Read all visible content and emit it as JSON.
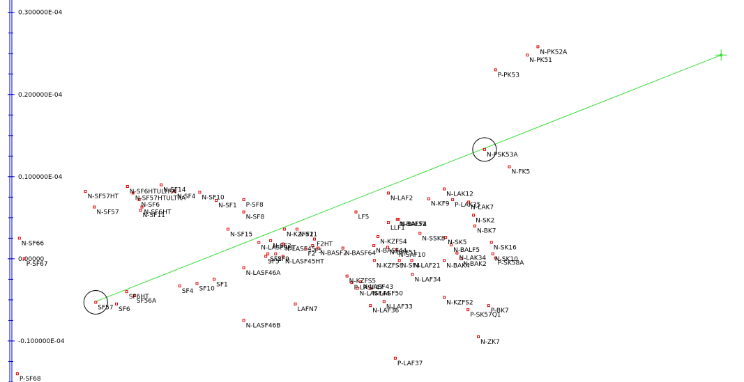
{
  "chart_data": {
    "type": "scatter",
    "colors": {
      "axis": "#0000cc",
      "points": "#e00000",
      "line": "#33dd33",
      "circles": "#000000"
    },
    "y_axis": {
      "ticks": [
        {
          "value": 3e-05,
          "label": "0.300000E-04"
        },
        {
          "value": 2e-05,
          "label": "0.200000E-04"
        },
        {
          "value": 1e-05,
          "label": "0.100000E-04"
        },
        {
          "value": 0.0,
          "label": "0.00000"
        },
        {
          "value": -1e-05,
          "label": "-0.100000E-04"
        }
      ]
    },
    "x_range": [
      0.0,
      1.0
    ],
    "y_range": [
      -1.5e-05,
      3.15e-05
    ],
    "line_endpoints": [
      {
        "x": 0.1171,
        "y": -5.2e-06
      },
      {
        "x": 0.9688,
        "y": 2.48e-05
      }
    ],
    "circled_points": [
      "SF57",
      "N-PSK53A"
    ],
    "points": [
      {
        "name": "SF57",
        "x": 0.1171,
        "y": -5.3e-06
      },
      {
        "name": "SF6",
        "x": 0.1453,
        "y": -5.5e-06
      },
      {
        "name": "SF56A",
        "x": 0.1697,
        "y": -4.5e-06
      },
      {
        "name": "SF6HT",
        "x": 0.1593,
        "y": -4e-06
      },
      {
        "name": "SF4",
        "x": 0.2315,
        "y": -3.3e-06
      },
      {
        "name": "SF10",
        "x": 0.255,
        "y": -3e-06
      },
      {
        "name": "SF1",
        "x": 0.2784,
        "y": -2.5e-06
      },
      {
        "name": "N-LASF46A",
        "x": 0.3187,
        "y": -1.1e-06
      },
      {
        "name": "N-LASF46B",
        "x": 0.3187,
        "y": -7.5e-06
      },
      {
        "name": "LAFN7",
        "x": 0.3889,
        "y": -5.5e-06
      },
      {
        "name": "N-SF57HT",
        "x": 0.1031,
        "y": 8.2e-06
      },
      {
        "name": "N-SF57HTULTRA",
        "x": 0.1678,
        "y": 8e-06
      },
      {
        "name": "N-SF57",
        "x": 0.1153,
        "y": 6.3e-06
      },
      {
        "name": "N-SF6HTULTRA",
        "x": 0.1603,
        "y": 8.8e-06
      },
      {
        "name": "N-SF6",
        "x": 0.1762,
        "y": 7.2e-06
      },
      {
        "name": "N-SF6HT",
        "x": 0.18,
        "y": 6.3e-06
      },
      {
        "name": "N-SF11",
        "x": 0.1781,
        "y": 5.9e-06
      },
      {
        "name": "N-SF14",
        "x": 0.2062,
        "y": 9e-06
      },
      {
        "name": "N-SF4",
        "x": 0.225,
        "y": 8.2e-06
      },
      {
        "name": "N-SF10",
        "x": 0.2587,
        "y": 8.1e-06
      },
      {
        "name": "N-SF1",
        "x": 0.2812,
        "y": 7.1e-06
      },
      {
        "name": "P-SF8",
        "x": 0.3187,
        "y": 7.2e-06
      },
      {
        "name": "N-SF8",
        "x": 0.3187,
        "y": 5.7e-06
      },
      {
        "name": "N-SF15",
        "x": 0.2972,
        "y": 3.6e-06
      },
      {
        "name": "N-SF66",
        "x": 0.0131,
        "y": 2.5e-06
      },
      {
        "name": "P-SF67",
        "x": 0.0197,
        "y": 0.0
      },
      {
        "name": "P-SF68",
        "x": 0.0103,
        "y": -1.4e-05
      },
      {
        "name": "N-KZFS11",
        "x": 0.374,
        "y": 3.6e-06
      },
      {
        "name": "N-F2",
        "x": 0.3912,
        "y": 3.6e-06
      },
      {
        "name": "N-SF2",
        "x": 0.3553,
        "y": 2.2e-06
      },
      {
        "name": "N-LASF45",
        "x": 0.3721,
        "y": 1.8e-06
      },
      {
        "name": "F2HT",
        "x": 0.415,
        "y": 2.4e-06
      },
      {
        "name": "F5",
        "x": 0.4125,
        "y": 1.6e-06
      },
      {
        "name": "N-LASF9HT",
        "x": 0.3393,
        "y": 2e-06
      },
      {
        "name": "SF2",
        "x": 0.3515,
        "y": 6e-07
      },
      {
        "name": "SF9",
        "x": 0.3621,
        "y": 6e-07
      },
      {
        "name": "SF5",
        "x": 0.3487,
        "y": 3e-07
      },
      {
        "name": "F2",
        "x": 0.4031,
        "y": 1.2e-06
      },
      {
        "name": "N-BASF2",
        "x": 0.42,
        "y": 1.3e-06
      },
      {
        "name": "N-LASF45HT",
        "x": 0.3721,
        "y": 3e-07
      },
      {
        "name": "N-BASF64",
        "x": 0.4537,
        "y": 1.3e-06
      },
      {
        "name": "LF5",
        "x": 0.4715,
        "y": 5.7e-06
      },
      {
        "name": "N-LAF2",
        "x": 0.5156,
        "y": 8e-06
      },
      {
        "name": "LLF1",
        "x": 0.5156,
        "y": 4.4e-06
      },
      {
        "name": "N-BAF52",
        "x": 0.5278,
        "y": 4.8e-06
      },
      {
        "name": "N-BALF4",
        "x": 0.5293,
        "y": 4.8e-06
      },
      {
        "name": "N-KZFS4",
        "x": 0.5015,
        "y": 2.7e-06
      },
      {
        "name": "N-BASF44",
        "x": 0.4959,
        "y": 1.6e-06
      },
      {
        "name": "N-SAF10",
        "x": 0.5268,
        "y": 1.1e-06
      },
      {
        "name": "N-SSK8",
        "x": 0.5587,
        "y": 3.1e-06
      },
      {
        "name": "N-BAF51",
        "x": 0.5146,
        "y": 1.4e-06
      },
      {
        "name": "N-KZFS8",
        "x": 0.4965,
        "y": -2e-07
      },
      {
        "name": "N-SF4_1",
        "x": 0.5306,
        "y": -2e-07
      },
      {
        "name": "N-LAF21",
        "x": 0.5475,
        "y": -2e-07
      },
      {
        "name": "N-LAF34",
        "x": 0.5484,
        "y": -1.9e-06
      },
      {
        "name": "N-KZFS5",
        "x": 0.4593,
        "y": -2.1e-06
      },
      {
        "name": "P-LASF47",
        "x": 0.4659,
        "y": -2.9e-06
      },
      {
        "name": "N-LASF43",
        "x": 0.4781,
        "y": -2.8e-06
      },
      {
        "name": "N-LASF44",
        "x": 0.4734,
        "y": -3.6e-06
      },
      {
        "name": "N-LASF50",
        "x": 0.4912,
        "y": -3.6e-06
      },
      {
        "name": "N-LAF36",
        "x": 0.4912,
        "y": -5.7e-06
      },
      {
        "name": "N-LAF33",
        "x": 0.5098,
        "y": -5.2e-06
      },
      {
        "name": "P-LAF37",
        "x": 0.5251,
        "y": -1.21e-05
      },
      {
        "name": "N-LAK12",
        "x": 0.5918,
        "y": 8.5e-06
      },
      {
        "name": "N-KF9",
        "x": 0.5706,
        "y": 7.3e-06
      },
      {
        "name": "P-LAK35",
        "x": 0.6032,
        "y": 7.2e-06
      },
      {
        "name": "N-LAK7",
        "x": 0.625,
        "y": 6.9e-06
      },
      {
        "name": "N-PK51",
        "x": 0.7048,
        "y": 2.48e-05
      },
      {
        "name": "N-PK52A",
        "x": 0.7193,
        "y": 2.58e-05
      },
      {
        "name": "P-PK53",
        "x": 0.6616,
        "y": 2.3e-05
      },
      {
        "name": "N-PSK53A",
        "x": 0.6466,
        "y": 1.33e-05
      },
      {
        "name": "N-FK5",
        "x": 0.6804,
        "y": 1.12e-05
      },
      {
        "name": "N-SK2",
        "x": 0.6316,
        "y": 5.3e-06
      },
      {
        "name": "N-BK7",
        "x": 0.6335,
        "y": 4e-06
      },
      {
        "name": "N-SK16",
        "x": 0.656,
        "y": 2e-06
      },
      {
        "name": "N-SK10",
        "x": 0.6579,
        "y": 6e-07
      },
      {
        "name": "P-SK58A",
        "x": 0.6616,
        "y": 1e-07
      },
      {
        "name": "N-LAK34",
        "x": 0.6091,
        "y": 7e-07
      },
      {
        "name": "N-BAK2",
        "x": 0.6147,
        "y": 0.0
      },
      {
        "name": "N-SK5",
        "x": 0.5937,
        "y": 2.6e-06
      },
      {
        "name": "N-BALF5",
        "x": 0.6013,
        "y": 1.7e-06
      },
      {
        "name": "N-BAK4",
        "x": 0.5918,
        "y": -2e-07
      },
      {
        "name": "N-KZFS2",
        "x": 0.5918,
        "y": -4.7e-06
      },
      {
        "name": "P-BK7",
        "x": 0.6522,
        "y": -5.7e-06
      },
      {
        "name": "P-SK57Q1",
        "x": 0.6241,
        "y": -6.2e-06
      },
      {
        "name": "N-ZK7",
        "x": 0.6382,
        "y": -9.5e-06
      }
    ],
    "labels": [
      {
        "text": "SF57"
      },
      {
        "text": "SF6"
      },
      {
        "text": "SF56A"
      },
      {
        "text": "SF6HT"
      },
      {
        "text": "SF4"
      },
      {
        "text": "SF10"
      },
      {
        "text": "SF1"
      },
      {
        "text": "N-LASF46A"
      },
      {
        "text": "N-LASF46B"
      },
      {
        "text": "LAFN7"
      },
      {
        "text": "N-SF57HT"
      },
      {
        "text": "N-SF57HTULTRA"
      },
      {
        "text": "N-SF57"
      },
      {
        "text": "N-SF6HTULTRA"
      },
      {
        "text": "N-SF6"
      },
      {
        "text": "N-SF6HT"
      },
      {
        "text": "N-SF11"
      },
      {
        "text": "N-SF14"
      },
      {
        "text": "N-SF4"
      },
      {
        "text": "N-SF10"
      },
      {
        "text": "N-SF1"
      },
      {
        "text": "P-SF8"
      },
      {
        "text": "N-SF8"
      },
      {
        "text": "N-SF15"
      },
      {
        "text": "N-SF66"
      },
      {
        "text": "P-SF67"
      },
      {
        "text": "P-SF68"
      },
      {
        "text": "N-KZFS11"
      },
      {
        "text": "N-F2"
      },
      {
        "text": "N-SF2"
      },
      {
        "text": "N-LASF45"
      },
      {
        "text": "F2HT"
      },
      {
        "text": "F5"
      },
      {
        "text": "N-LASF9HT"
      },
      {
        "text": "SF2"
      },
      {
        "text": "SF9"
      },
      {
        "text": "SF5"
      },
      {
        "text": "F2"
      },
      {
        "text": "N-BASF2"
      },
      {
        "text": "N-LASF45HT"
      },
      {
        "text": "N-BASF64"
      },
      {
        "text": "LF5"
      },
      {
        "text": "N-LAF2"
      },
      {
        "text": "LLF1"
      },
      {
        "text": "N-BAF52"
      },
      {
        "text": "N-BALF4"
      },
      {
        "text": "N-KZFS4"
      },
      {
        "text": "N-BASF44"
      },
      {
        "text": "N-SAF10"
      },
      {
        "text": "N-SSK8"
      },
      {
        "text": "N-BAF51"
      },
      {
        "text": "N-KZFS8"
      },
      {
        "text": "N-SF4"
      },
      {
        "text": "N-LAF21"
      },
      {
        "text": "N-LAF34"
      },
      {
        "text": "N-KZFS5"
      },
      {
        "text": "P-LASF47"
      },
      {
        "text": "N-LASF43"
      },
      {
        "text": "N-LASF44"
      },
      {
        "text": "N-LASF50"
      },
      {
        "text": "N-LAF36"
      },
      {
        "text": "N-LAF33"
      },
      {
        "text": "P-LAF37"
      },
      {
        "text": "N-LAK12"
      },
      {
        "text": "N-KF9"
      },
      {
        "text": "P-LAK35"
      },
      {
        "text": "N-LAK7"
      },
      {
        "text": "N-PK51"
      },
      {
        "text": "N-PK52A"
      },
      {
        "text": "P-PK53"
      },
      {
        "text": "N-PSK53A"
      },
      {
        "text": "N-FK5"
      },
      {
        "text": "N-SK2"
      },
      {
        "text": "N-BK7"
      },
      {
        "text": "N-SK16"
      },
      {
        "text": "N-SK10"
      },
      {
        "text": "P-SK58A"
      },
      {
        "text": "N-LAK34"
      },
      {
        "text": "N-BAK2"
      },
      {
        "text": "N-SK5"
      },
      {
        "text": "N-BALF5"
      },
      {
        "text": "N-BAK4"
      },
      {
        "text": "N-KZFS2"
      },
      {
        "text": "P-BK7"
      },
      {
        "text": "P-SK57Q1"
      },
      {
        "text": "N-ZK7"
      }
    ]
  }
}
